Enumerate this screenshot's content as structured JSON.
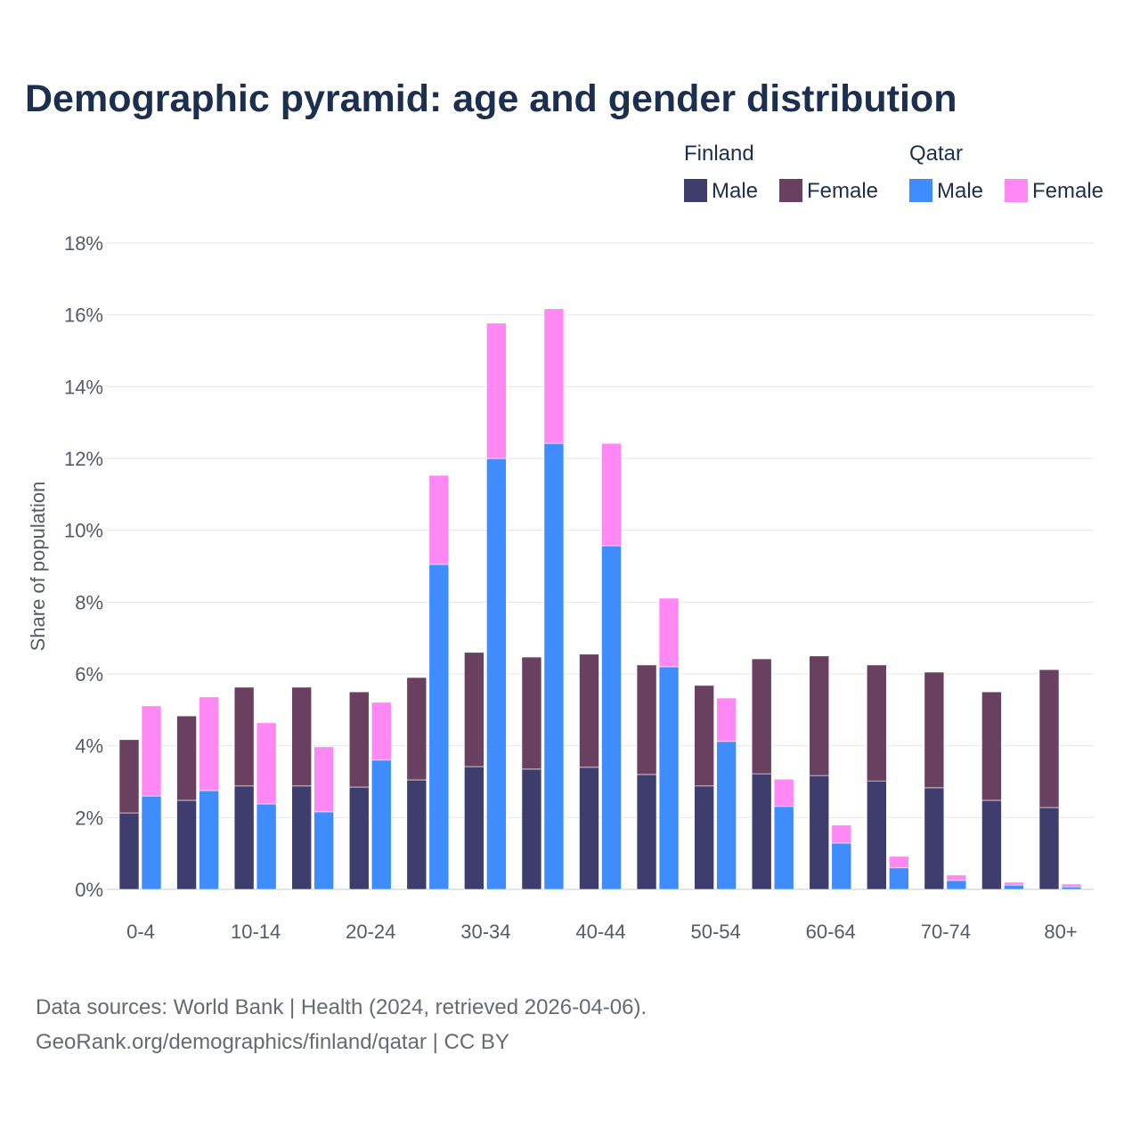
{
  "chart_data": {
    "type": "bar",
    "stacked": true,
    "title": "Demographic pyramid: age and gender distribution",
    "ylabel": "Share of population",
    "xlabel": "",
    "ylim": [
      0,
      18
    ],
    "yticks": [
      0,
      2,
      4,
      6,
      8,
      10,
      12,
      14,
      16,
      18
    ],
    "ytick_labels": [
      "0%",
      "2%",
      "4%",
      "6%",
      "8%",
      "10%",
      "12%",
      "14%",
      "16%",
      "18%"
    ],
    "grid": true,
    "legend_placement": "top-right",
    "categories": [
      "0-4",
      "5-9",
      "10-14",
      "15-19",
      "20-24",
      "25-29",
      "30-34",
      "35-39",
      "40-44",
      "45-49",
      "50-54",
      "55-59",
      "60-64",
      "65-69",
      "70-74",
      "75-79",
      "80+"
    ],
    "xtick_labels": [
      "0-4",
      "10-14",
      "20-24",
      "30-34",
      "40-44",
      "50-54",
      "60-64",
      "70-74",
      "80+"
    ],
    "groups": [
      {
        "name": "Finland",
        "series": [
          {
            "name": "Male",
            "color": "#3f3d6e",
            "values": [
              2.13,
              2.48,
              2.88,
              2.88,
              2.85,
              3.05,
              3.42,
              3.35,
              3.4,
              3.2,
              2.88,
              3.22,
              3.17,
              3.02,
              2.83,
              2.48,
              2.28
            ]
          },
          {
            "name": "Female",
            "color": "#6a4060",
            "values": [
              2.04,
              2.35,
              2.75,
              2.75,
              2.65,
              2.85,
              3.18,
              3.12,
              3.15,
              3.05,
              2.8,
              3.2,
              3.33,
              3.23,
              3.22,
              3.02,
              3.84
            ]
          }
        ]
      },
      {
        "name": "Qatar",
        "series": [
          {
            "name": "Male",
            "color": "#3f8cff",
            "values": [
              2.6,
              2.75,
              2.38,
              2.16,
              3.6,
              9.05,
              12.0,
              12.42,
              9.57,
              6.2,
              4.12,
              2.31,
              1.29,
              0.6,
              0.25,
              0.12,
              0.07
            ]
          },
          {
            "name": "Female",
            "color": "#ff88f5",
            "values": [
              2.51,
              2.61,
              2.26,
              1.81,
              1.61,
              2.48,
              3.77,
              3.75,
              2.85,
              1.91,
              1.21,
              0.76,
              0.5,
              0.32,
              0.15,
              0.08,
              0.08
            ]
          }
        ]
      }
    ]
  },
  "footer": {
    "line1": "Data sources: World Bank | Health (2024, retrieved 2026-04-06).",
    "line2": "GeoRank.org/demographics/finland/qatar | CC BY"
  }
}
